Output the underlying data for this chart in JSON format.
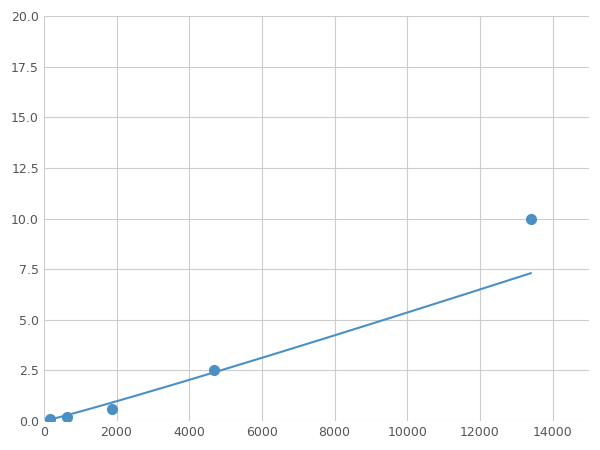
{
  "x_points": [
    156,
    625,
    1875,
    4688,
    13400
  ],
  "y_points": [
    0.1,
    0.2,
    0.6,
    2.5,
    10.0
  ],
  "line_color": "#4a90c4",
  "marker_color": "#4a90c4",
  "xlim": [
    0,
    15000
  ],
  "ylim": [
    0,
    20.0
  ],
  "xticks": [
    0,
    2000,
    4000,
    6000,
    8000,
    10000,
    12000,
    14000
  ],
  "yticks": [
    0.0,
    2.5,
    5.0,
    7.5,
    10.0,
    12.5,
    15.0,
    17.5,
    20.0
  ],
  "grid_color": "#cccccc",
  "background_color": "#ffffff",
  "marker_size": 7,
  "line_width": 1.5
}
